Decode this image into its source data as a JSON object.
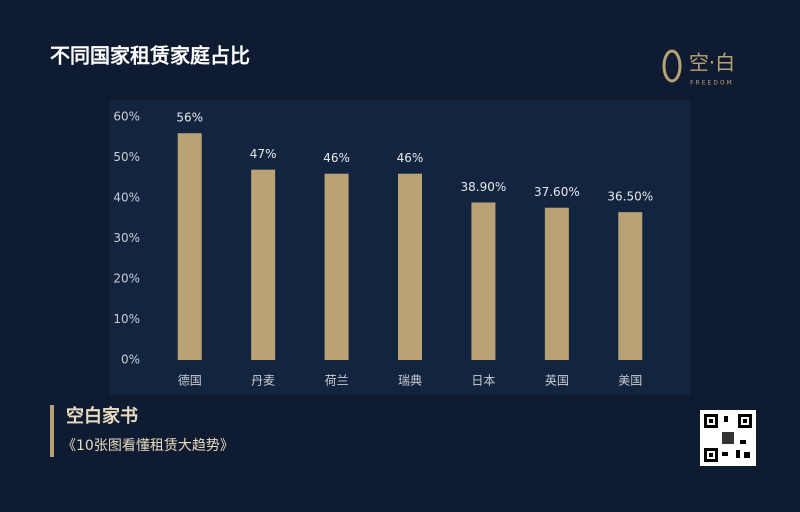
{
  "chart_data": {
    "type": "bar",
    "title": "不同国家租赁家庭占比",
    "categories": [
      "德国",
      "丹麦",
      "荷兰",
      "瑞典",
      "日本",
      "英国",
      "美国"
    ],
    "values": [
      56,
      47,
      46,
      46,
      38.9,
      37.6,
      36.5
    ],
    "value_labels": [
      "56%",
      "47%",
      "46%",
      "46%",
      "38.90%",
      "37.60%",
      "36.50%"
    ],
    "color": "#b9a275",
    "ylim": [
      0,
      60
    ],
    "yticks": [
      {
        "value": 0,
        "label": "0%"
      },
      {
        "value": 10,
        "label": "10%"
      },
      {
        "value": 20,
        "label": "20%"
      },
      {
        "value": 30,
        "label": "30%"
      },
      {
        "value": 40,
        "label": "40%"
      },
      {
        "value": 50,
        "label": "50%"
      },
      {
        "value": 60,
        "label": "60%"
      }
    ],
    "grid": false
  },
  "logo": {
    "name": "空·白",
    "tagline": "FREEDOM"
  },
  "footer": {
    "title": "空白家书",
    "subtitle": "《10张图看懂租赁大趋势》"
  }
}
